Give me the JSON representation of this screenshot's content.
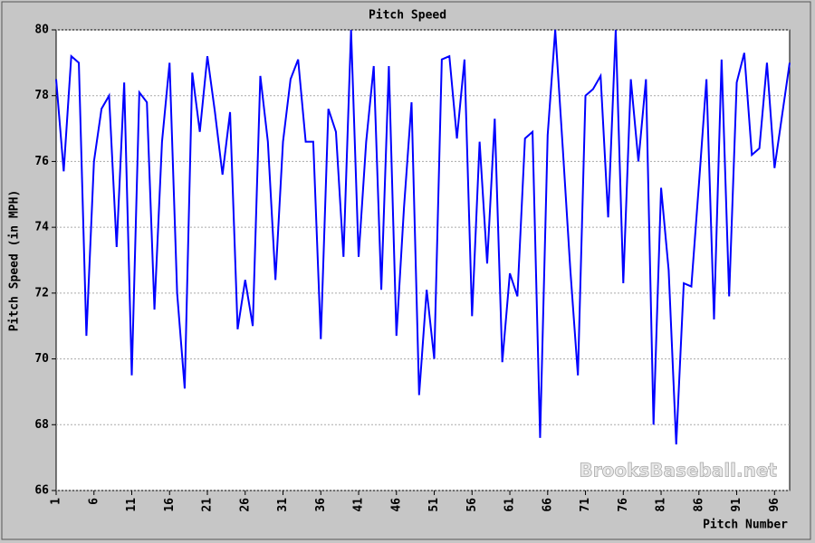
{
  "chart_data": {
    "type": "line",
    "title": "Pitch Speed",
    "xlabel": "Pitch Number",
    "ylabel": "Pitch Speed (in MPH)",
    "watermark": "BrooksBaseball.net",
    "x": [
      1,
      2,
      3,
      4,
      5,
      6,
      7,
      8,
      9,
      10,
      11,
      12,
      13,
      14,
      15,
      16,
      17,
      18,
      19,
      20,
      21,
      22,
      23,
      24,
      25,
      26,
      27,
      28,
      29,
      30,
      31,
      32,
      33,
      34,
      35,
      36,
      37,
      38,
      39,
      40,
      41,
      42,
      43,
      44,
      45,
      46,
      47,
      48,
      49,
      50,
      51,
      52,
      53,
      54,
      55,
      56,
      57,
      58,
      59,
      60,
      61,
      62,
      63,
      64,
      65,
      66,
      67,
      68,
      69,
      70,
      71,
      72,
      73,
      74,
      75,
      76,
      77,
      78,
      79,
      80,
      81,
      82,
      83,
      84,
      85,
      86,
      87,
      88,
      89,
      90,
      91,
      92,
      93,
      94,
      95,
      96,
      97,
      98
    ],
    "series": [
      {
        "name": "Pitch Speed",
        "color": "#0000ff",
        "values": [
          78.5,
          75.7,
          79.2,
          79,
          70.7,
          76,
          77.6,
          78,
          73.4,
          78.4,
          69.5,
          78.1,
          77.8,
          71.5,
          76.6,
          79,
          72,
          69.1,
          78.7,
          76.9,
          79.2,
          77.5,
          75.6,
          77.5,
          70.9,
          72.4,
          71,
          78.6,
          76.6,
          72.4,
          76.6,
          78.5,
          79.1,
          76.6,
          76.6,
          70.6,
          77.6,
          76.9,
          73.1,
          80,
          73.1,
          76.6,
          78.9,
          72.1,
          78.9,
          70.7,
          74.6,
          77.8,
          68.9,
          72.1,
          70,
          79.1,
          79.2,
          76.7,
          79.1,
          71.3,
          76.6,
          72.9,
          77.3,
          69.9,
          72.6,
          71.9,
          76.7,
          76.9,
          67.6,
          76.8,
          80,
          76.4,
          72.7,
          69.5,
          78,
          78.2,
          78.6,
          74.3,
          80,
          72.3,
          78.5,
          76,
          78.5,
          68,
          75.2,
          72.7,
          67.4,
          72.3,
          72.2,
          75.3,
          78.5,
          71.2,
          79.1,
          71.9,
          78.4,
          79.3,
          76.2,
          76.4,
          79,
          75.8,
          77.4,
          79
        ]
      }
    ],
    "xlim": [
      1,
      98
    ],
    "xticks": [
      1,
      6,
      11,
      16,
      21,
      26,
      31,
      36,
      41,
      46,
      51,
      56,
      61,
      66,
      71,
      76,
      81,
      86,
      91,
      96
    ],
    "ylim": [
      66,
      80
    ],
    "yticks": [
      66,
      68,
      70,
      72,
      74,
      76,
      78,
      80
    ],
    "grid": true
  }
}
